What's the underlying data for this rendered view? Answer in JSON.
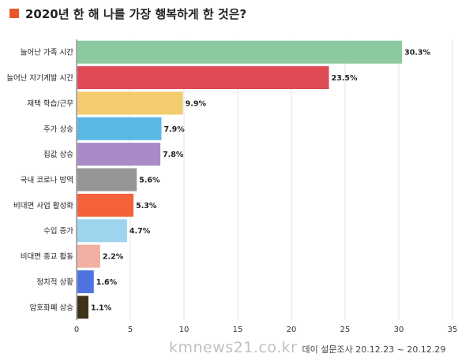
{
  "colors": {
    "title_marker": "#e8562a",
    "axis": "#555555",
    "grid": "#e3e3e3"
  },
  "footer": {
    "watermark": "kmnews21.co.kr",
    "source": "데이 설문조사 20.12.23 ~ 20.12.29"
  },
  "chart_data": {
    "type": "bar",
    "orientation": "horizontal",
    "title": "2020년 한 해 나를 가장 행복하게 한 것은?",
    "xlabel": "",
    "ylabel": "",
    "xlim": [
      0,
      35
    ],
    "x_ticks": [
      "0",
      "5",
      "10",
      "15",
      "20",
      "25",
      "30",
      "35"
    ],
    "grid": true,
    "categories": [
      "늘어난 가족 시간",
      "늘어난 자기계발 시간",
      "재택 학습/근무",
      "주가 상승",
      "집값 상승",
      "국내 코로나 방역",
      "비대면 사업 활성화",
      "수입 증가",
      "비대면 종교 활동",
      "정치적 상황",
      "암호화폐 상승"
    ],
    "values": [
      30.3,
      23.5,
      9.9,
      7.9,
      7.8,
      5.6,
      5.3,
      4.7,
      2.2,
      1.6,
      1.1
    ],
    "value_labels": [
      "30.3%",
      "23.5%",
      "9.9%",
      "7.9%",
      "7.8%",
      "5.6%",
      "5.3%",
      "4.7%",
      "2.2%",
      "1.6%",
      "1.1%"
    ],
    "bar_colors": [
      "#8cc9a0",
      "#e04a56",
      "#f2cc6e",
      "#5ab8e6",
      "#a88bc6",
      "#959595",
      "#f4623a",
      "#9ed4ee",
      "#f0b0a2",
      "#4d74e0",
      "#3d3118"
    ]
  }
}
